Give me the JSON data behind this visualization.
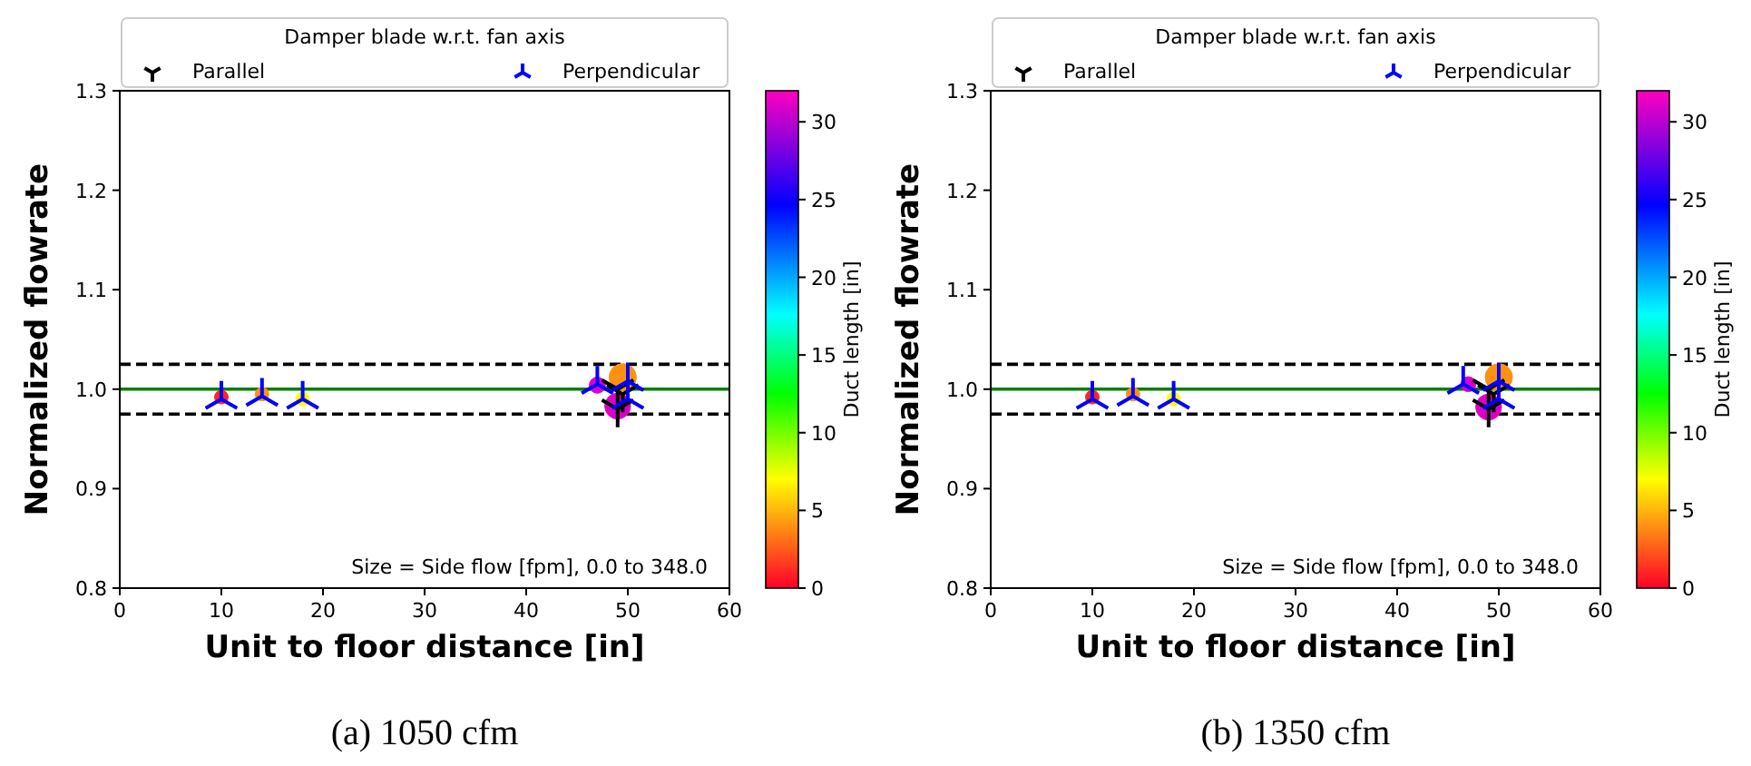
{
  "chart_data": [
    {
      "type": "scatter",
      "legend_title": "Damper blade w.r.t. fan axis",
      "legend": "top",
      "xlabel": "Unit to floor distance [in]",
      "ylabel": "Normalized flowrate",
      "clabel": "Duct length [in]",
      "xlim": [
        0,
        60
      ],
      "ylim": [
        0.8,
        1.3
      ],
      "xticks": [
        0,
        10,
        20,
        30,
        40,
        50,
        60
      ],
      "yticks": [
        0.8,
        0.9,
        {
          "value": 1,
          "label": "1.0"
        },
        1.1,
        1.2,
        1.3
      ],
      "clim": [
        0,
        32
      ],
      "cticks": [
        0,
        5,
        10,
        15,
        20,
        25,
        30
      ],
      "ref_lines": [
        {
          "axis": "y",
          "value": 1.0,
          "color": "#008000",
          "line_style": "solid"
        },
        {
          "axis": "y",
          "value": 1.025,
          "color": "#000000",
          "line_style": "dashed"
        },
        {
          "axis": "y",
          "value": 0.975,
          "color": "#000000",
          "line_style": "dashed"
        }
      ],
      "annotations": [
        "Size = Side flow [fpm], 0.0  to 348.0",
        "(a) 1050 cfm"
      ],
      "series": [
        {
          "marker": "circle",
          "x": [
            10,
            14,
            18,
            47,
            49.5,
            49
          ],
          "values": [
            0.992,
            0.995,
            0.99,
            1.004,
            1.012,
            0.983
          ],
          "cvalues": [
            1,
            4,
            7,
            31,
            4,
            31
          ],
          "colors": [
            "#ff2423",
            "#ff9112",
            "#fffd00",
            "#dc00c8",
            "#ff9112",
            "#dc00c8"
          ],
          "sizes": [
            0.25,
            0.25,
            0.25,
            0.35,
            1,
            0.9
          ]
        },
        {
          "name": "Parallel",
          "color": "#000000",
          "x": [
            49,
            49,
            49.5
          ],
          "values": [
            1.0,
            0.98,
            0.995
          ]
        },
        {
          "name": "Perpendicular",
          "color": "#0000ff",
          "x": [
            10,
            14,
            18,
            47,
            50,
            50
          ],
          "values": [
            0.99,
            0.993,
            0.99,
            1.005,
            1.008,
            0.99
          ]
        }
      ]
    },
    {
      "type": "scatter",
      "legend_title": "Damper blade w.r.t. fan axis",
      "legend": "top",
      "xlabel": "Unit to floor distance [in]",
      "ylabel": "Normalized flowrate",
      "clabel": "Duct length [in]",
      "xlim": [
        0,
        60
      ],
      "ylim": [
        0.8,
        1.3
      ],
      "xticks": [
        0,
        10,
        20,
        30,
        40,
        50,
        60
      ],
      "yticks": [
        0.8,
        0.9,
        {
          "value": 1,
          "label": "1.0"
        },
        1.1,
        1.2,
        1.3
      ],
      "clim": [
        0,
        32
      ],
      "cticks": [
        0,
        5,
        10,
        15,
        20,
        25,
        30
      ],
      "ref_lines": [
        {
          "axis": "y",
          "value": 1.0,
          "color": "#008000",
          "line_style": "solid"
        },
        {
          "axis": "y",
          "value": 1.025,
          "color": "#000000",
          "line_style": "dashed"
        },
        {
          "axis": "y",
          "value": 0.975,
          "color": "#000000",
          "line_style": "dashed"
        }
      ],
      "annotations": [
        "Size = Side flow [fpm], 0.0  to 348.0",
        "(b) 1350 cfm"
      ],
      "series": [
        {
          "marker": "circle",
          "x": [
            10,
            14,
            18,
            47,
            50,
            49
          ],
          "values": [
            0.992,
            0.995,
            0.99,
            1.005,
            1.012,
            0.982
          ],
          "cvalues": [
            1,
            4,
            7,
            31,
            4,
            31
          ],
          "colors": [
            "#ff2423",
            "#ff9112",
            "#fffd00",
            "#dc00c8",
            "#ff9112",
            "#dc00c8"
          ],
          "sizes": [
            0.25,
            0.25,
            0.25,
            0.3,
            1,
            0.9
          ]
        },
        {
          "name": "Parallel",
          "color": "#000000",
          "x": [
            49,
            49,
            49.5
          ],
          "values": [
            1.0,
            0.98,
            0.995
          ]
        },
        {
          "name": "Perpendicular",
          "color": "#0000ff",
          "x": [
            10,
            14,
            18,
            46.5,
            50,
            50
          ],
          "values": [
            0.99,
            0.993,
            0.99,
            1.005,
            1.008,
            0.99
          ]
        }
      ]
    }
  ]
}
